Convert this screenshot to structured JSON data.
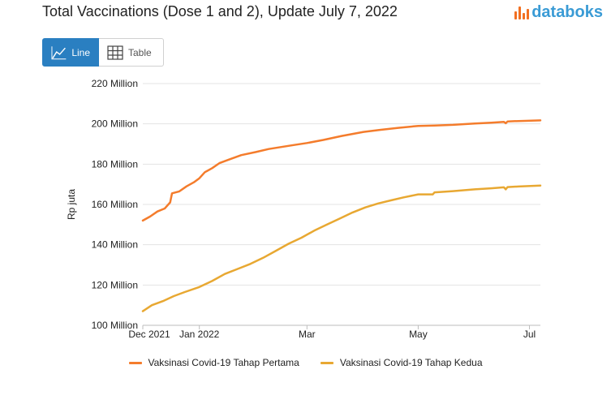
{
  "header": {
    "title": "Total Vaccinations (Dose 1 and 2), Update July 7, 2022",
    "brand": "databoks"
  },
  "toolbar": {
    "line_label": "Line",
    "table_label": "Table"
  },
  "colors": {
    "series1": "#f47c2c",
    "series2": "#e8a832",
    "accent": "#2a7fc1"
  },
  "chart_data": {
    "type": "line",
    "title": "Total Vaccinations (Dose 1 and 2), Update July 7, 2022",
    "ylabel": "Rp juta",
    "xlabel": "",
    "ylim": [
      100,
      220
    ],
    "yticks": [
      100,
      120,
      140,
      160,
      180,
      200,
      220
    ],
    "ytick_labels": [
      "100 Million",
      "120 Million",
      "140 Million",
      "160 Million",
      "180 Million",
      "200 Million",
      "220 Million"
    ],
    "xlim": [
      "2021-12-01",
      "2022-07-07"
    ],
    "xticks": [
      "2021-12-01",
      "2022-01-01",
      "2022-03-01",
      "2022-05-01",
      "2022-07-01"
    ],
    "xtick_labels": [
      "Dec 2021",
      "Jan 2022",
      "Mar",
      "May",
      "Jul"
    ],
    "grid": true,
    "legend_position": "bottom",
    "series": [
      {
        "name": "Vaksinasi Covid-19 Tahap Pertama",
        "points": [
          [
            "2021-12-01",
            152
          ],
          [
            "2021-12-05",
            154
          ],
          [
            "2021-12-09",
            156.5
          ],
          [
            "2021-12-13",
            158
          ],
          [
            "2021-12-16",
            161
          ],
          [
            "2021-12-17",
            165.5
          ],
          [
            "2021-12-21",
            166.5
          ],
          [
            "2021-12-25",
            169
          ],
          [
            "2021-12-29",
            171
          ],
          [
            "2022-01-01",
            173
          ],
          [
            "2022-01-04",
            176
          ],
          [
            "2022-01-08",
            178
          ],
          [
            "2022-01-12",
            180.5
          ],
          [
            "2022-01-18",
            182.5
          ],
          [
            "2022-01-24",
            184.5
          ],
          [
            "2022-02-01",
            186
          ],
          [
            "2022-02-08",
            187.5
          ],
          [
            "2022-02-15",
            188.5
          ],
          [
            "2022-02-22",
            189.5
          ],
          [
            "2022-03-01",
            190.5
          ],
          [
            "2022-03-10",
            192
          ],
          [
            "2022-03-20",
            194
          ],
          [
            "2022-04-01",
            196
          ],
          [
            "2022-04-10",
            197
          ],
          [
            "2022-04-20",
            198
          ],
          [
            "2022-05-01",
            199
          ],
          [
            "2022-05-10",
            199.2
          ],
          [
            "2022-05-20",
            199.5
          ],
          [
            "2022-06-01",
            200.2
          ],
          [
            "2022-06-10",
            200.6
          ],
          [
            "2022-06-17",
            201
          ],
          [
            "2022-06-18",
            200.3
          ],
          [
            "2022-06-19",
            201.2
          ],
          [
            "2022-06-25",
            201.4
          ],
          [
            "2022-07-07",
            201.7
          ]
        ]
      },
      {
        "name": "Vaksinasi Covid-19 Tahap Kedua",
        "points": [
          [
            "2021-12-01",
            107
          ],
          [
            "2021-12-06",
            110
          ],
          [
            "2021-12-12",
            112
          ],
          [
            "2021-12-18",
            114.5
          ],
          [
            "2021-12-24",
            116.5
          ],
          [
            "2022-01-01",
            119
          ],
          [
            "2022-01-08",
            122
          ],
          [
            "2022-01-15",
            125.5
          ],
          [
            "2022-01-22",
            128
          ],
          [
            "2022-01-29",
            130.5
          ],
          [
            "2022-02-05",
            133.5
          ],
          [
            "2022-02-12",
            137
          ],
          [
            "2022-02-19",
            140.5
          ],
          [
            "2022-02-26",
            143.5
          ],
          [
            "2022-03-05",
            147
          ],
          [
            "2022-03-12",
            150
          ],
          [
            "2022-03-19",
            153
          ],
          [
            "2022-03-26",
            156
          ],
          [
            "2022-04-02",
            158.5
          ],
          [
            "2022-04-09",
            160.5
          ],
          [
            "2022-04-16",
            162
          ],
          [
            "2022-04-23",
            163.5
          ],
          [
            "2022-05-01",
            165
          ],
          [
            "2022-05-09",
            165
          ],
          [
            "2022-05-10",
            166
          ],
          [
            "2022-05-20",
            166.6
          ],
          [
            "2022-06-01",
            167.5
          ],
          [
            "2022-06-10",
            168
          ],
          [
            "2022-06-17",
            168.5
          ],
          [
            "2022-06-18",
            167.5
          ],
          [
            "2022-06-19",
            168.6
          ],
          [
            "2022-06-25",
            168.9
          ],
          [
            "2022-07-07",
            169.4
          ]
        ]
      }
    ]
  }
}
